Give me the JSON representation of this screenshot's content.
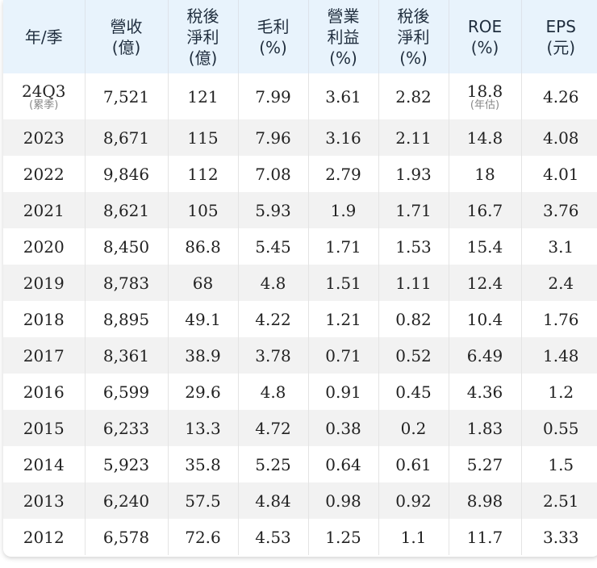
{
  "table": {
    "headers": [
      [
        "年/季"
      ],
      [
        "營收",
        "(億)"
      ],
      [
        "稅後",
        "淨利",
        "(億)"
      ],
      [
        "毛利",
        "(%)"
      ],
      [
        "營業",
        "利益",
        "(%)"
      ],
      [
        "稅後",
        "淨利",
        "(%)"
      ],
      [
        "ROE",
        "(%)"
      ],
      [
        "EPS",
        "(元)"
      ]
    ],
    "first_row": {
      "period": "24Q3",
      "period_note": "(累季)",
      "revenue": "7,521",
      "net_income": "121",
      "gross_margin": "7.99",
      "operating_margin": "3.61",
      "net_margin": "2.82",
      "roe": "18.8",
      "roe_note": "(年估)",
      "eps": "4.26"
    },
    "rows": [
      [
        "2023",
        "8,671",
        "115",
        "7.96",
        "3.16",
        "2.11",
        "14.8",
        "4.08"
      ],
      [
        "2022",
        "9,846",
        "112",
        "7.08",
        "2.79",
        "1.93",
        "18",
        "4.01"
      ],
      [
        "2021",
        "8,621",
        "105",
        "5.93",
        "1.9",
        "1.71",
        "16.7",
        "3.76"
      ],
      [
        "2020",
        "8,450",
        "86.8",
        "5.45",
        "1.71",
        "1.53",
        "15.4",
        "3.1"
      ],
      [
        "2019",
        "8,783",
        "68",
        "4.8",
        "1.51",
        "1.11",
        "12.4",
        "2.4"
      ],
      [
        "2018",
        "8,895",
        "49.1",
        "4.22",
        "1.21",
        "0.82",
        "10.4",
        "1.76"
      ],
      [
        "2017",
        "8,361",
        "38.9",
        "3.78",
        "0.71",
        "0.52",
        "6.49",
        "1.48"
      ],
      [
        "2016",
        "6,599",
        "29.6",
        "4.8",
        "0.91",
        "0.45",
        "4.36",
        "1.2"
      ],
      [
        "2015",
        "6,233",
        "13.3",
        "4.72",
        "0.38",
        "0.2",
        "1.83",
        "0.55"
      ],
      [
        "2014",
        "5,923",
        "35.8",
        "5.25",
        "0.64",
        "0.61",
        "5.27",
        "1.5"
      ],
      [
        "2013",
        "6,240",
        "57.5",
        "4.84",
        "0.98",
        "0.92",
        "8.98",
        "2.51"
      ],
      [
        "2012",
        "6,578",
        "72.6",
        "4.53",
        "1.25",
        "1.1",
        "11.7",
        "3.33"
      ]
    ]
  },
  "colors": {
    "header_bg": "#e8f3fc",
    "alt_row_bg": "#f2f2f2"
  }
}
